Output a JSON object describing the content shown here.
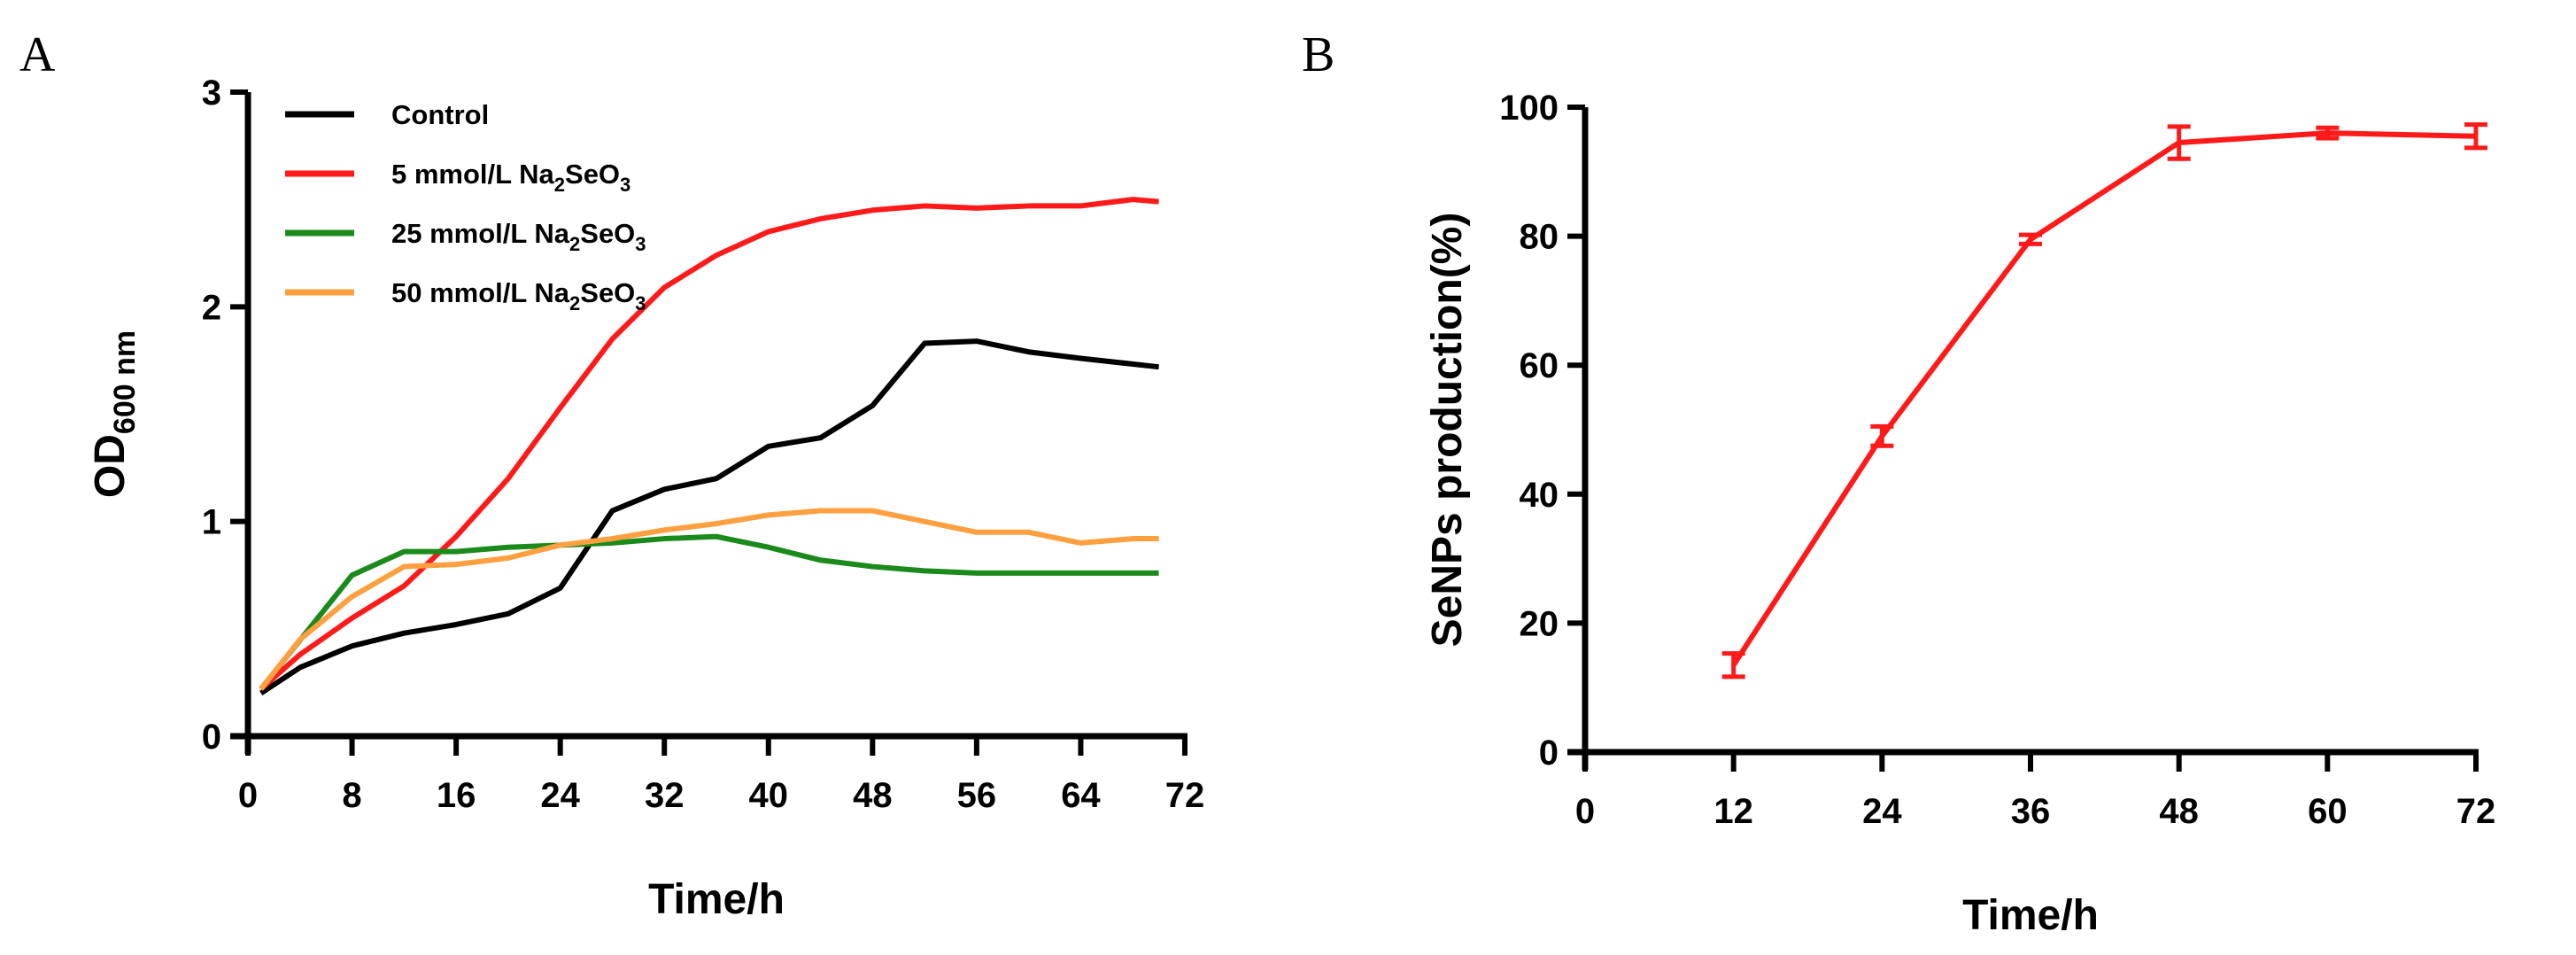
{
  "chart_data": [
    {
      "type": "line",
      "panel_label": "A",
      "title": "",
      "xlabel": "Time/h",
      "ylabel_main": "OD",
      "ylabel_sub": "600 nm",
      "xlim": [
        0,
        72
      ],
      "ylim": [
        0,
        3
      ],
      "xticks": [
        0,
        8,
        16,
        24,
        32,
        40,
        48,
        56,
        64,
        72
      ],
      "yticks": [
        0,
        1,
        2,
        3
      ],
      "grid": false,
      "legend_position": "top-left",
      "series": [
        {
          "name": "Control",
          "label_parts": [
            [
              "Control",
              false
            ]
          ],
          "color": "#000000",
          "x": [
            1,
            4,
            8,
            12,
            16,
            20,
            24,
            28,
            32,
            36,
            40,
            44,
            48,
            52,
            56,
            60,
            64,
            70
          ],
          "y": [
            0.2,
            0.32,
            0.42,
            0.48,
            0.52,
            0.57,
            0.69,
            1.05,
            1.15,
            1.2,
            1.35,
            1.39,
            1.54,
            1.83,
            1.84,
            1.79,
            1.76,
            1.72
          ]
        },
        {
          "name": "5 mmol/L Na2SeO3",
          "label_parts": [
            [
              "5 mmol/L Na",
              false
            ],
            [
              "2",
              true
            ],
            [
              "SeO",
              false
            ],
            [
              "3",
              true
            ]
          ],
          "color": "#ff1a1a",
          "x": [
            1,
            4,
            8,
            12,
            16,
            20,
            24,
            28,
            32,
            36,
            40,
            44,
            48,
            52,
            56,
            60,
            64,
            68,
            70
          ],
          "y": [
            0.22,
            0.38,
            0.55,
            0.7,
            0.93,
            1.2,
            1.53,
            1.85,
            2.09,
            2.24,
            2.35,
            2.41,
            2.45,
            2.47,
            2.46,
            2.47,
            2.47,
            2.5,
            2.49
          ]
        },
        {
          "name": "25 mmol/L Na2SeO3",
          "label_parts": [
            [
              "25 mmol/L Na",
              false
            ],
            [
              "2",
              true
            ],
            [
              "SeO",
              false
            ],
            [
              "3",
              true
            ]
          ],
          "color": "#1a8a1a",
          "x": [
            1,
            8,
            12,
            16,
            20,
            24,
            28,
            32,
            36,
            40,
            44,
            48,
            52,
            56,
            64,
            70
          ],
          "y": [
            0.22,
            0.75,
            0.86,
            0.86,
            0.88,
            0.89,
            0.9,
            0.92,
            0.93,
            0.88,
            0.82,
            0.79,
            0.77,
            0.76,
            0.76,
            0.76
          ]
        },
        {
          "name": "50 mmol/L Na2SeO3",
          "label_parts": [
            [
              "50 mmol/L Na",
              false
            ],
            [
              "2",
              true
            ],
            [
              "SeO",
              false
            ],
            [
              "3",
              true
            ]
          ],
          "color": "#ffa040",
          "x": [
            1,
            4,
            8,
            12,
            16,
            20,
            24,
            28,
            32,
            36,
            40,
            44,
            48,
            52,
            56,
            60,
            64,
            68,
            70
          ],
          "y": [
            0.22,
            0.45,
            0.65,
            0.79,
            0.8,
            0.83,
            0.89,
            0.92,
            0.96,
            0.99,
            1.03,
            1.05,
            1.05,
            1.0,
            0.95,
            0.95,
            0.9,
            0.92,
            0.92
          ]
        }
      ]
    },
    {
      "type": "line",
      "panel_label": "B",
      "title": "",
      "xlabel": "Time/h",
      "ylabel": "SeNPs production(%)",
      "xlim": [
        0,
        72
      ],
      "ylim": [
        0,
        100
      ],
      "xticks": [
        0,
        12,
        24,
        36,
        48,
        60,
        72
      ],
      "yticks": [
        0,
        20,
        40,
        60,
        80,
        100
      ],
      "grid": false,
      "series": [
        {
          "name": "SeNPs production",
          "color": "#ff1a1a",
          "x": [
            12,
            24,
            36,
            48,
            60,
            72
          ],
          "y": [
            13.5,
            49,
            79.5,
            94.5,
            96,
            95.5
          ],
          "error": [
            1.8,
            1.5,
            0.7,
            2.5,
            0.8,
            1.8
          ]
        }
      ]
    }
  ]
}
